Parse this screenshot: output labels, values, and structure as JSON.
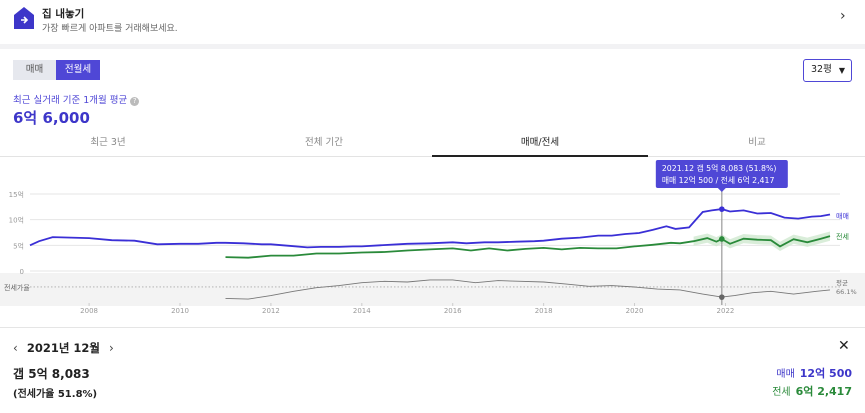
{
  "banner": {
    "title": "집 내놓기",
    "subtitle": "가장 빠르게 아파트를 거래해보세요."
  },
  "toggle": {
    "sale": "매매",
    "rent": "전월세"
  },
  "size": {
    "value": "32평"
  },
  "average": {
    "label": "최근 실거래 기준 1개월 평균",
    "value": "6억 6,000"
  },
  "tabs": [
    {
      "label": "최근 3년"
    },
    {
      "label": "전체 기간"
    },
    {
      "label": "매매/전세"
    },
    {
      "label": "비교"
    }
  ],
  "chart_data": {
    "type": "line",
    "y_ticks": [
      "15억",
      "10억",
      "5억",
      "0"
    ],
    "x_ticks": [
      "2008",
      "2010",
      "2012",
      "2014",
      "2016",
      "2018",
      "2020",
      "2022"
    ],
    "ylim": [
      0,
      15
    ],
    "ratio_label": "전세가율",
    "avg_label": "평균",
    "avg_value": "66.1%",
    "series": [
      {
        "name": "매매",
        "color": "#3a2fd6",
        "x": [
          2006.7,
          2006.9,
          2007.2,
          2007.6,
          2008.0,
          2008.5,
          2009.0,
          2009.5,
          2010.0,
          2010.4,
          2010.8,
          2011.0,
          2011.4,
          2011.8,
          2012.0,
          2012.4,
          2012.8,
          2013.1,
          2013.5,
          2013.8,
          2014.0,
          2014.4,
          2014.8,
          2015.0,
          2015.5,
          2016.0,
          2016.3,
          2016.7,
          2017.0,
          2017.4,
          2017.8,
          2018.0,
          2018.4,
          2018.8,
          2019.2,
          2019.5,
          2019.8,
          2020.1,
          2020.4,
          2020.7,
          2020.9,
          2021.2,
          2021.5,
          2021.7,
          2021.92,
          2022.1,
          2022.4,
          2022.7,
          2023.0,
          2023.3,
          2023.6,
          2023.9,
          2024.1,
          2024.3
        ],
        "values": [
          5.0,
          5.8,
          6.6,
          6.5,
          6.4,
          6.0,
          5.9,
          5.2,
          5.3,
          5.3,
          5.5,
          5.5,
          5.4,
          5.2,
          5.2,
          4.9,
          4.6,
          4.7,
          4.7,
          4.8,
          4.8,
          5.0,
          5.2,
          5.3,
          5.4,
          5.6,
          5.4,
          5.6,
          5.6,
          5.7,
          5.8,
          5.9,
          6.3,
          6.5,
          6.9,
          6.9,
          7.2,
          7.4,
          8.0,
          8.7,
          8.2,
          8.5,
          11.5,
          11.8,
          12.05,
          11.6,
          11.8,
          11.2,
          11.3,
          10.4,
          10.2,
          10.6,
          10.7,
          11.0
        ]
      },
      {
        "name": "전세",
        "color": "#2a8a3a",
        "x": [
          2011.0,
          2011.5,
          2012.0,
          2012.5,
          2013.0,
          2013.5,
          2014.0,
          2014.5,
          2015.0,
          2015.5,
          2016.0,
          2016.4,
          2016.8,
          2017.2,
          2017.6,
          2018.0,
          2018.4,
          2018.8,
          2019.2,
          2019.6,
          2020.0,
          2020.4,
          2020.8,
          2021.0,
          2021.3,
          2021.6,
          2021.8,
          2021.92,
          2022.1,
          2022.4,
          2022.7,
          2023.0,
          2023.2,
          2023.5,
          2023.8,
          2024.1,
          2024.3
        ],
        "values": [
          2.7,
          2.6,
          3.0,
          3.0,
          3.4,
          3.4,
          3.6,
          3.7,
          4.0,
          4.2,
          4.4,
          4.0,
          4.4,
          4.0,
          4.3,
          4.5,
          4.2,
          4.5,
          4.4,
          4.4,
          4.8,
          5.1,
          5.5,
          5.4,
          5.8,
          6.4,
          5.7,
          6.2417,
          5.3,
          6.3,
          6.1,
          6.0,
          4.8,
          6.2,
          5.6,
          6.3,
          6.8
        ]
      },
      {
        "name": "전세가율",
        "color": "#777777",
        "x": [
          2011.0,
          2011.5,
          2012.0,
          2012.5,
          2013.0,
          2013.5,
          2014.0,
          2014.5,
          2015.0,
          2015.5,
          2016.0,
          2016.5,
          2017.0,
          2017.5,
          2018.0,
          2018.5,
          2019.0,
          2019.5,
          2020.0,
          2020.5,
          2021.0,
          2021.5,
          2021.92,
          2022.2,
          2022.6,
          2023.0,
          2023.5,
          2024.0,
          2024.3
        ],
        "values": [
          50,
          49,
          54,
          60,
          65,
          68,
          72,
          74,
          73,
          76,
          76,
          72,
          75,
          74,
          73,
          70,
          67,
          68,
          66,
          63,
          62,
          56,
          51.8,
          54,
          58,
          60,
          56,
          60,
          62
        ]
      }
    ]
  },
  "tooltip": {
    "line1": "2021.12 갭 5억 8,083 (51.8%)",
    "line2": "매매 12억 500 / 전세 6억 2,417"
  },
  "detail": {
    "date": "2021년 12월",
    "gap": "갭 5억 8,083",
    "ratio": "(전세가율 51.8%)",
    "sale_label": "매매",
    "sale_value": "12억 500",
    "rent_label": "전세",
    "rent_value": "6억 2,417"
  }
}
